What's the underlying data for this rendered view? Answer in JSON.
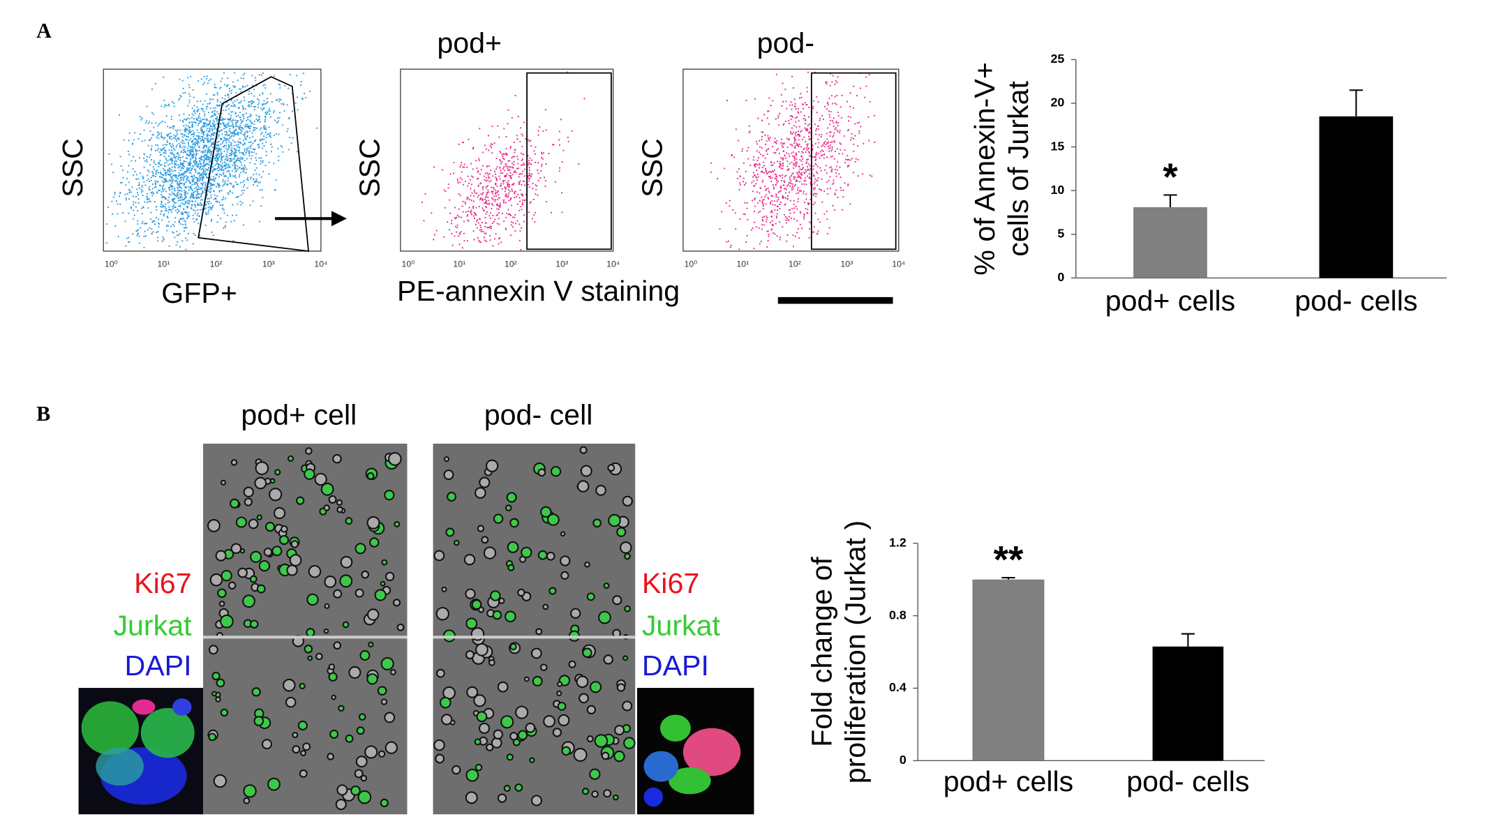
{
  "figure": {
    "panel_labels": [
      "A",
      "B"
    ],
    "flow": {
      "titles": [
        "pod+",
        "pod-"
      ],
      "y_label": "SSC",
      "x_labels": [
        "GFP+",
        "PE-annexin V staining"
      ],
      "tick_labels": [
        "10⁰",
        "10¹",
        "10²",
        "10³",
        "10⁴"
      ]
    },
    "micro": {
      "titles": [
        "pod+ cell",
        "pod- cell"
      ],
      "stains": [
        "Ki67",
        "Jurkat",
        "DAPI"
      ]
    }
  },
  "chart_data": [
    {
      "type": "bar",
      "y_label": [
        "% of Annexin-V+",
        "cells of Jurkat"
      ],
      "categories": [
        "pod+ cells",
        "pod- cells"
      ],
      "values": [
        8.1,
        18.5
      ],
      "errors": [
        1.4,
        3.0
      ],
      "colors": [
        "#808080",
        "#000000"
      ],
      "significance": [
        "*",
        null
      ],
      "ylim": [
        0,
        25
      ],
      "yticks": [
        0,
        5,
        10,
        15,
        20,
        25
      ]
    },
    {
      "type": "bar",
      "y_label": [
        "Fold change of",
        "proliferation (Jurkat )"
      ],
      "categories": [
        "pod+ cells",
        "pod- cells"
      ],
      "values": [
        1.0,
        0.63
      ],
      "errors": [
        0.01,
        0.07
      ],
      "colors": [
        "#808080",
        "#000000"
      ],
      "significance": [
        "**",
        null
      ],
      "ylim": [
        0,
        1.2
      ],
      "yticks": [
        0,
        0.4,
        0.8,
        1.2
      ]
    }
  ]
}
